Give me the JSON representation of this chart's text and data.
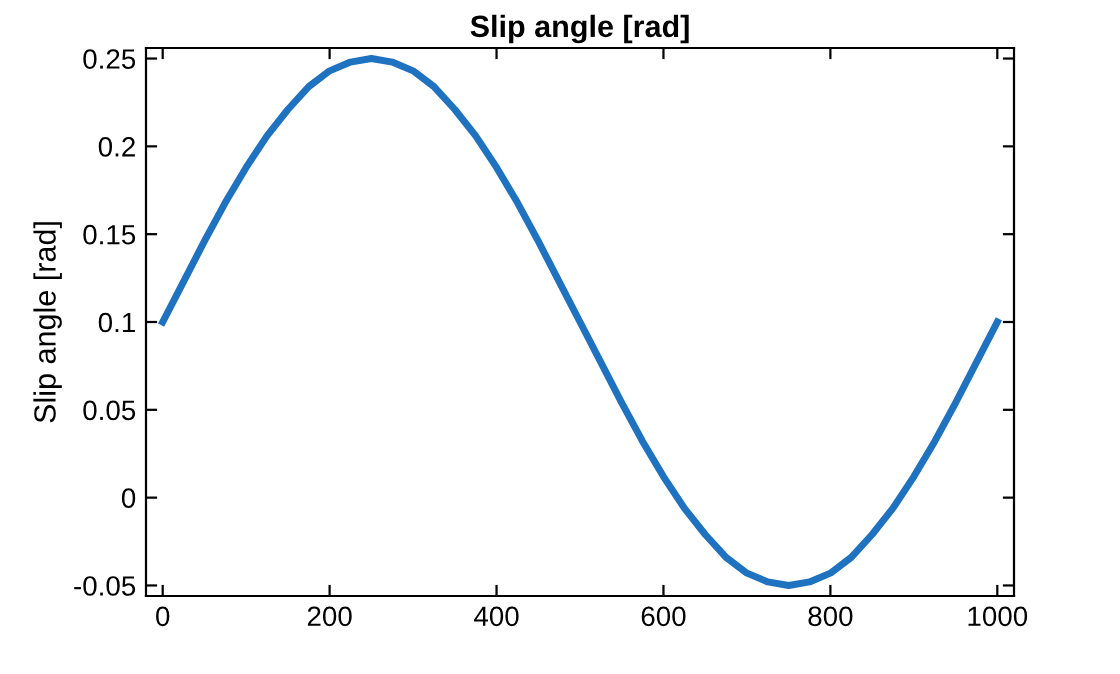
{
  "chart_data": {
    "type": "line",
    "title": "Slip angle [rad]",
    "ylabel": "Slip angle [rad]",
    "series": [
      {
        "color": "#1f72bf",
        "x": [
          0,
          25,
          50,
          75,
          100,
          125,
          150,
          175,
          200,
          225,
          250,
          275,
          300,
          325,
          350,
          375,
          400,
          425,
          450,
          475,
          500,
          525,
          550,
          575,
          600,
          625,
          650,
          675,
          700,
          725,
          750,
          775,
          800,
          825,
          850,
          875,
          900,
          925,
          950,
          975,
          1000
        ],
        "values": [
          0.1,
          0.123,
          0.146,
          0.168,
          0.188,
          0.206,
          0.221,
          0.234,
          0.243,
          0.248,
          0.25,
          0.248,
          0.243,
          0.234,
          0.221,
          0.206,
          0.188,
          0.168,
          0.146,
          0.123,
          0.1,
          0.077,
          0.054,
          0.032,
          0.012,
          -0.006,
          -0.021,
          -0.034,
          -0.043,
          -0.048,
          -0.05,
          -0.048,
          -0.043,
          -0.034,
          -0.021,
          -0.006,
          0.012,
          0.032,
          0.054,
          0.077,
          0.1
        ]
      }
    ],
    "xlim": [
      -20,
      1020
    ],
    "ylim": [
      -0.056,
      0.256
    ],
    "xticks": [
      0,
      200,
      400,
      600,
      800,
      1000
    ],
    "yticks": [
      -0.05,
      0,
      0.05,
      0.1,
      0.15,
      0.2,
      0.25
    ],
    "grid": false,
    "legend": false,
    "marker": "none",
    "line_style": "solid"
  }
}
